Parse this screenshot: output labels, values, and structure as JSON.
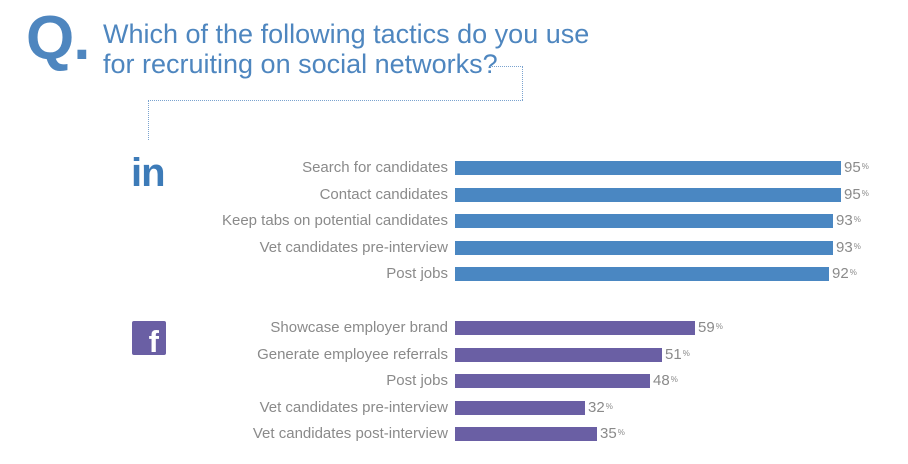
{
  "question": {
    "mark": "Q.",
    "line1": "Which of the following tactics do you use",
    "line2": "for recruiting on social networks?"
  },
  "linkedin_logo": "in",
  "facebook_logo": "f",
  "colors": {
    "linkedin": "#4a87c2",
    "facebook": "#6a5fa4",
    "accent": "#4e86bf"
  },
  "chart_data": [
    {
      "type": "bar",
      "series_name": "",
      "categories": [
        "Search for candidates",
        "Contact candidates",
        "Keep tabs on potential candidates",
        "Vet candidates pre-interview",
        "Post jobs"
      ],
      "values": [
        95,
        95,
        93,
        93,
        92
      ],
      "unit": "%",
      "xlim": [
        0,
        100
      ]
    },
    {
      "type": "bar",
      "series_name": "",
      "categories": [
        "Showcase employer brand",
        "Generate employee referrals",
        "Post jobs",
        "Vet candidates pre-interview",
        "Vet candidates post-interview"
      ],
      "values": [
        59,
        51,
        48,
        32,
        35
      ],
      "unit": "%",
      "xlim": [
        0,
        100
      ]
    }
  ]
}
